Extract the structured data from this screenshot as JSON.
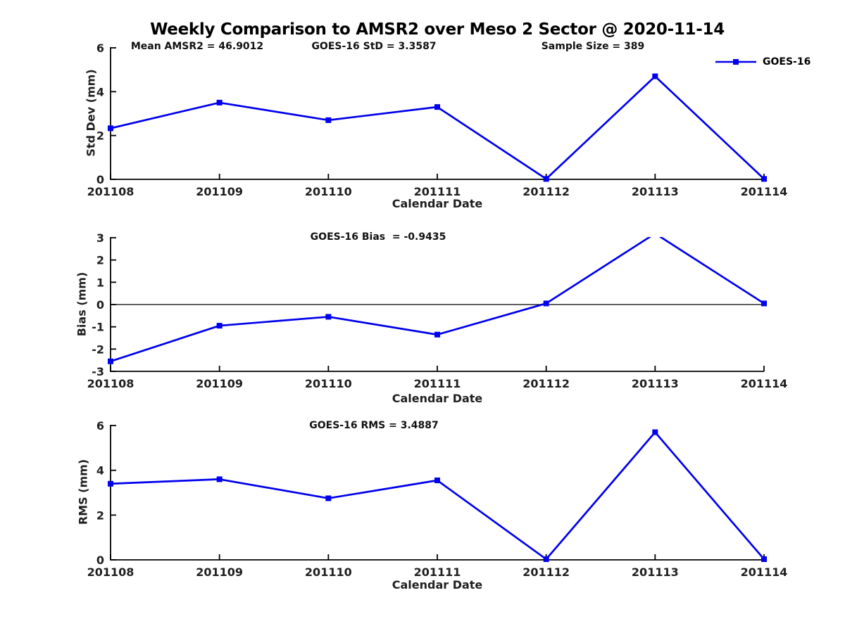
{
  "title": "Weekly Comparison to AMSR2 over Meso 2 Sector @ 2020-11-14",
  "legend": {
    "label": "GOES-16"
  },
  "colors": {
    "series": "#0000ee",
    "axis": "#000000",
    "text": "#1f1f1f",
    "background": "#ffffff"
  },
  "chart_data": [
    {
      "type": "line",
      "name": "std-dev",
      "ylabel": "Std Dev (mm)",
      "xlabel": "Calendar Date",
      "categories": [
        "201108",
        "201109",
        "201110",
        "201111",
        "201112",
        "201113",
        "201114"
      ],
      "series": [
        {
          "name": "GOES-16",
          "values": [
            2.33,
            3.5,
            2.7,
            3.3,
            0.02,
            4.7,
            0.02
          ]
        }
      ],
      "ylim": [
        0,
        6
      ],
      "yticks": [
        0,
        2,
        4,
        6
      ],
      "grid": false,
      "legend_position": "top-right",
      "annotations": [
        {
          "text": "Mean AMSR2 = 46.9012"
        },
        {
          "text": "GOES-16 StD = 3.3587"
        },
        {
          "text": "Sample Size = 389"
        }
      ]
    },
    {
      "type": "line",
      "name": "bias",
      "ylabel": "Bias (mm)",
      "xlabel": "Calendar Date",
      "categories": [
        "201108",
        "201109",
        "201110",
        "201111",
        "201112",
        "201113",
        "201114"
      ],
      "series": [
        {
          "name": "GOES-16",
          "values": [
            -2.55,
            -0.95,
            -0.55,
            -1.35,
            0.05,
            3.19,
            0.05
          ]
        }
      ],
      "ylim": [
        -3,
        3
      ],
      "yticks": [
        -3,
        -2,
        -1,
        0,
        1,
        2,
        3
      ],
      "grid": false,
      "zero_line": true,
      "clipped_at_ymax": true,
      "annotations": [
        {
          "text": "GOES-16 Bias  = -0.9435"
        }
      ]
    },
    {
      "type": "line",
      "name": "rms",
      "ylabel": "RMS (mm)",
      "xlabel": "Calendar Date",
      "categories": [
        "201108",
        "201109",
        "201110",
        "201111",
        "201112",
        "201113",
        "201114"
      ],
      "series": [
        {
          "name": "GOES-16",
          "values": [
            3.4,
            3.6,
            2.75,
            3.55,
            0.03,
            5.7,
            0.03
          ]
        }
      ],
      "ylim": [
        0,
        6
      ],
      "yticks": [
        0,
        2,
        4,
        6
      ],
      "grid": false,
      "annotations": [
        {
          "text": "GOES-16 RMS = 3.4887"
        }
      ]
    }
  ]
}
